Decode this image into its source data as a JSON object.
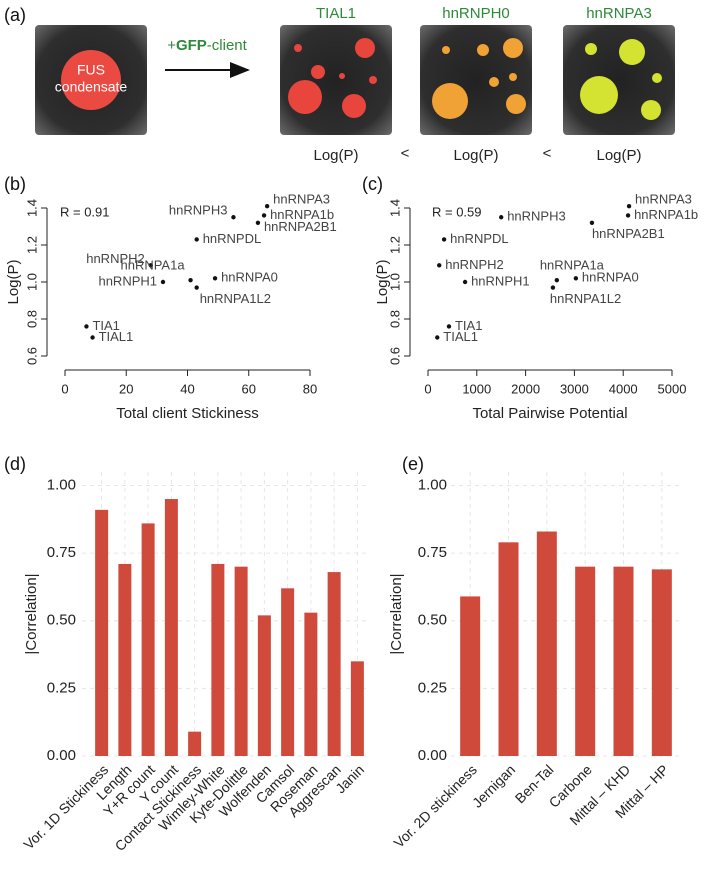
{
  "panel_a": {
    "label": "(a)",
    "condensate": [
      "FUS",
      "condensate"
    ],
    "arrow_label": {
      "prefix": "+",
      "highlight": "GFP",
      "suffix": "-client"
    },
    "clients": [
      "TIAL1",
      "hnRNPH0",
      "hnRNPA3"
    ],
    "relation": [
      "Log(P)",
      "<",
      "Log(P)",
      "<",
      "Log(P)"
    ]
  },
  "chart_data": [
    {
      "type": "scatter",
      "panel_label": "(b)",
      "annotation": "R = 0.91",
      "xlabel": "Total client Stickiness",
      "ylabel": "Log(P)",
      "color": "#111111",
      "labels": [
        "hnRNPA3",
        "hnRNPA1b",
        "hnRNPA2B1",
        "hnRNPH3",
        "hnRNPDL",
        "hnRNPH2",
        "hnRNPH1",
        "hnRNPA1a",
        "hnRNPA0",
        "hnRNPA1L2",
        "TIA1",
        "TIAL1"
      ],
      "x": [
        66,
        65,
        63,
        55,
        43,
        28,
        32,
        41,
        49,
        43,
        7,
        9
      ],
      "values": [
        1.41,
        1.36,
        1.32,
        1.35,
        1.23,
        1.09,
        1.0,
        1.01,
        1.02,
        0.97,
        0.76,
        0.7
      ],
      "xlim": [
        0,
        80
      ],
      "xticks": [
        0,
        20,
        40,
        60,
        80
      ],
      "ylim": [
        0.6,
        1.4
      ],
      "yticks": [
        0.6,
        0.8,
        {
          "value": 1,
          "label": "1.0"
        },
        1.2,
        1.4
      ]
    },
    {
      "type": "scatter",
      "panel_label": "(c)",
      "annotation": "R = 0.59",
      "xlabel": "Total Pairwise Potential",
      "ylabel": "Log(P)",
      "color": "#111111",
      "labels": [
        "hnRNPA3",
        "hnRNPA1b",
        "hnRNPA2B1",
        "hnRNPH3",
        "hnRNPDL",
        "hnRNPH2",
        "hnRNPH1",
        "hnRNPA1a",
        "hnRNPA0",
        "hnRNPA1L2",
        "TIA1",
        "TIAL1"
      ],
      "x": [
        4120,
        4100,
        3360,
        1500,
        330,
        230,
        760,
        2640,
        3030,
        2560,
        430,
        190
      ],
      "values": [
        1.41,
        1.36,
        1.32,
        1.35,
        1.23,
        1.09,
        1.0,
        1.01,
        1.02,
        0.97,
        0.76,
        0.7
      ],
      "xlim": [
        0,
        5000
      ],
      "xticks": [
        0,
        1000,
        2000,
        3000,
        4000,
        5000
      ],
      "ylim": [
        0.6,
        1.4
      ],
      "yticks": [
        0.6,
        0.8,
        {
          "value": 1,
          "label": "1.0"
        },
        1.2,
        1.4
      ]
    },
    {
      "type": "bar",
      "panel_label": "(d)",
      "ylabel": "|Correlation|",
      "color": "#cf4a3b",
      "grid": true,
      "categories": [
        "Vor. 1D Stickiness",
        "Length",
        "Y+R count",
        "Y count",
        "Contact Stickiness",
        "Wimley-White",
        "Kyte-Dolittle",
        "Wolfenden",
        "Camsol",
        "Roseman",
        "Aggrescan",
        "Janin"
      ],
      "values": [
        0.91,
        0.71,
        0.86,
        0.95,
        0.09,
        0.71,
        0.7,
        0.52,
        0.62,
        0.53,
        0.68,
        0.35
      ],
      "ylim": [
        0,
        1.05
      ],
      "yticks": [
        {
          "value": 0,
          "label": "0.00"
        },
        {
          "value": 0.25,
          "label": "0.25"
        },
        {
          "value": 0.5,
          "label": "0.50"
        },
        {
          "value": 0.75,
          "label": "0.75"
        },
        {
          "value": 1,
          "label": "1.00"
        }
      ]
    },
    {
      "type": "bar",
      "panel_label": "(e)",
      "ylabel": "|Correlation|",
      "color": "#cf4a3b",
      "grid": true,
      "categories": [
        "Vor. 2D stickiness",
        "Jernigan",
        "Ben-Tal",
        "Carbone",
        "Mittal – KHD",
        "Mittal – HP"
      ],
      "values": [
        0.59,
        0.79,
        0.83,
        0.7,
        0.7,
        0.69
      ],
      "ylim": [
        0,
        1.05
      ],
      "yticks": [
        {
          "value": 0,
          "label": "0.00"
        },
        {
          "value": 0.25,
          "label": "0.25"
        },
        {
          "value": 0.5,
          "label": "0.50"
        },
        {
          "value": 0.75,
          "label": "0.75"
        },
        {
          "value": 1,
          "label": "1.00"
        }
      ]
    }
  ]
}
